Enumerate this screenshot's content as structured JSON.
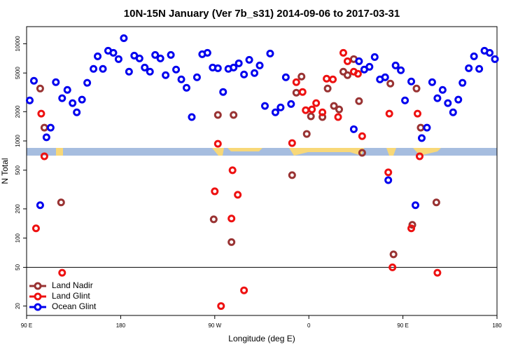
{
  "chart_data": {
    "type": "scatter",
    "title": "10N-15N January (Ver 7b_s31)   2014-09-06 to 2017-03-31",
    "xlabel": "Longitude (deg E)",
    "ylabel": "N Total",
    "xlim": [
      90,
      540
    ],
    "xticks": [
      {
        "value": 90,
        "label": "90 E"
      },
      180,
      {
        "value": 270,
        "label": "90 W"
      },
      {
        "value": 360,
        "label": "0"
      },
      {
        "value": 450,
        "label": "90 E"
      },
      {
        "value": 540,
        "label": "180"
      }
    ],
    "ylim": [
      16,
      15000
    ],
    "log_y": true,
    "yticks": [
      20,
      50,
      100,
      200,
      500,
      1000,
      2000,
      5000,
      10000
    ],
    "reference_line": 50,
    "legend": "lower left",
    "series": [
      {
        "name": "Land Nadir",
        "color": "#993333",
        "x": [
          103,
          107,
          123,
          269,
          273,
          286,
          288,
          344,
          348,
          353,
          358,
          362,
          373,
          378,
          384,
          389,
          393,
          397,
          403,
          408,
          411,
          438,
          441,
          459,
          463,
          467,
          482
        ],
        "values": [
          3460,
          1370,
          233,
          156,
          1850,
          91,
          1850,
          444,
          3135,
          4590,
          1180,
          1790,
          1760,
          3460,
          2290,
          2110,
          5160,
          4750,
          6950,
          2570,
          755,
          3890,
          68,
          137,
          3460,
          1370,
          233
        ]
      },
      {
        "name": "Land Glint",
        "color": "#ee1111",
        "x": [
          99,
          104,
          107,
          124,
          270,
          273,
          276,
          287,
          286,
          292,
          298,
          344,
          348,
          354,
          357,
          363,
          367,
          373,
          377,
          383,
          388,
          393,
          397,
          403,
          407,
          411,
          436,
          437,
          440,
          458,
          464,
          466,
          483
        ],
        "values": [
          126,
          1910,
          695,
          44,
          303,
          935,
          20,
          499,
          159,
          279,
          29,
          951,
          4020,
          3190,
          2070,
          2110,
          2450,
          1970,
          4370,
          4300,
          1760,
          8060,
          6610,
          5160,
          4910,
          1120,
          475,
          1910,
          50,
          126,
          1910,
          695,
          44
        ]
      },
      {
        "name": "Ocean Glint",
        "color": "#0000ee",
        "x": [
          93,
          97,
          103,
          109,
          113,
          118,
          124,
          129,
          134,
          138,
          143,
          148,
          154,
          158,
          163,
          168,
          173,
          178,
          183,
          188,
          193,
          198,
          203,
          208,
          213,
          218,
          223,
          228,
          233,
          238,
          243,
          248,
          253,
          258,
          263,
          268,
          273,
          278,
          283,
          288,
          293,
          298,
          303,
          308,
          313,
          318,
          323,
          328,
          333,
          338,
          343,
          403,
          408,
          413,
          418,
          423,
          428,
          433,
          436,
          443,
          448,
          452,
          458,
          462,
          468,
          473,
          478,
          483,
          488,
          493,
          498,
          503,
          507,
          513,
          518,
          523,
          528,
          533,
          538
        ],
        "values": [
          2610,
          4160,
          218,
          1090,
          1370,
          4020,
          2750,
          3350,
          2450,
          1970,
          2660,
          3960,
          5510,
          7420,
          5510,
          8470,
          8060,
          6950,
          11400,
          5160,
          7550,
          7060,
          5690,
          5160,
          7670,
          7060,
          4750,
          7670,
          5420,
          4300,
          3520,
          1760,
          4520,
          7800,
          8060,
          5690,
          5600,
          3190,
          5510,
          5690,
          6290,
          4830,
          6830,
          4990,
          5980,
          2290,
          7930,
          1970,
          2210,
          4520,
          2400,
          1320,
          6610,
          5420,
          5790,
          7300,
          4300,
          4520,
          395,
          5980,
          5330,
          2610,
          4090,
          218,
          1070,
          1370,
          4020,
          2750,
          3350,
          2450,
          1970,
          2660,
          3960,
          5600,
          7420,
          5510,
          8470,
          8060,
          6950
        ]
      }
    ]
  }
}
